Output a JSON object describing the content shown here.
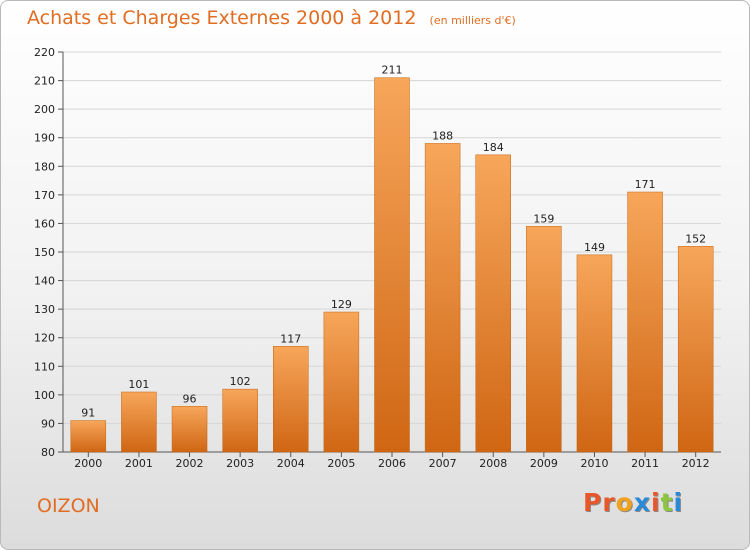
{
  "header": {
    "title": "Achats et Charges Externes 2000 à 2012",
    "unit": "(en milliers d'€)"
  },
  "footer": {
    "place": "OIZON",
    "logo_text": "Proxiti",
    "logo_colors": [
      "#e8572a",
      "#e8572a",
      "#f0a21c",
      "#2a8ad8",
      "#e8572a",
      "#8cc63e",
      "#2a8ad8"
    ]
  },
  "colors": {
    "accent": "#e06d22",
    "bar_top": "#f7a65a",
    "bar_bottom": "#cf6614",
    "grid": "#d6d6d6"
  },
  "chart_data": {
    "type": "bar",
    "title": "Achats et Charges Externes 2000 à 2012",
    "subtitle": "(en milliers d'€)",
    "categories": [
      "2000",
      "2001",
      "2002",
      "2003",
      "2004",
      "2005",
      "2006",
      "2007",
      "2008",
      "2009",
      "2010",
      "2011",
      "2012"
    ],
    "values": [
      91,
      101,
      96,
      102,
      117,
      129,
      211,
      188,
      184,
      159,
      149,
      171,
      152
    ],
    "ylim": [
      80,
      220
    ],
    "yticks": [
      80,
      90,
      100,
      110,
      120,
      130,
      140,
      150,
      160,
      170,
      180,
      190,
      200,
      210,
      220
    ],
    "xlabel": "",
    "ylabel": "",
    "grid": true,
    "data_labels": true
  }
}
